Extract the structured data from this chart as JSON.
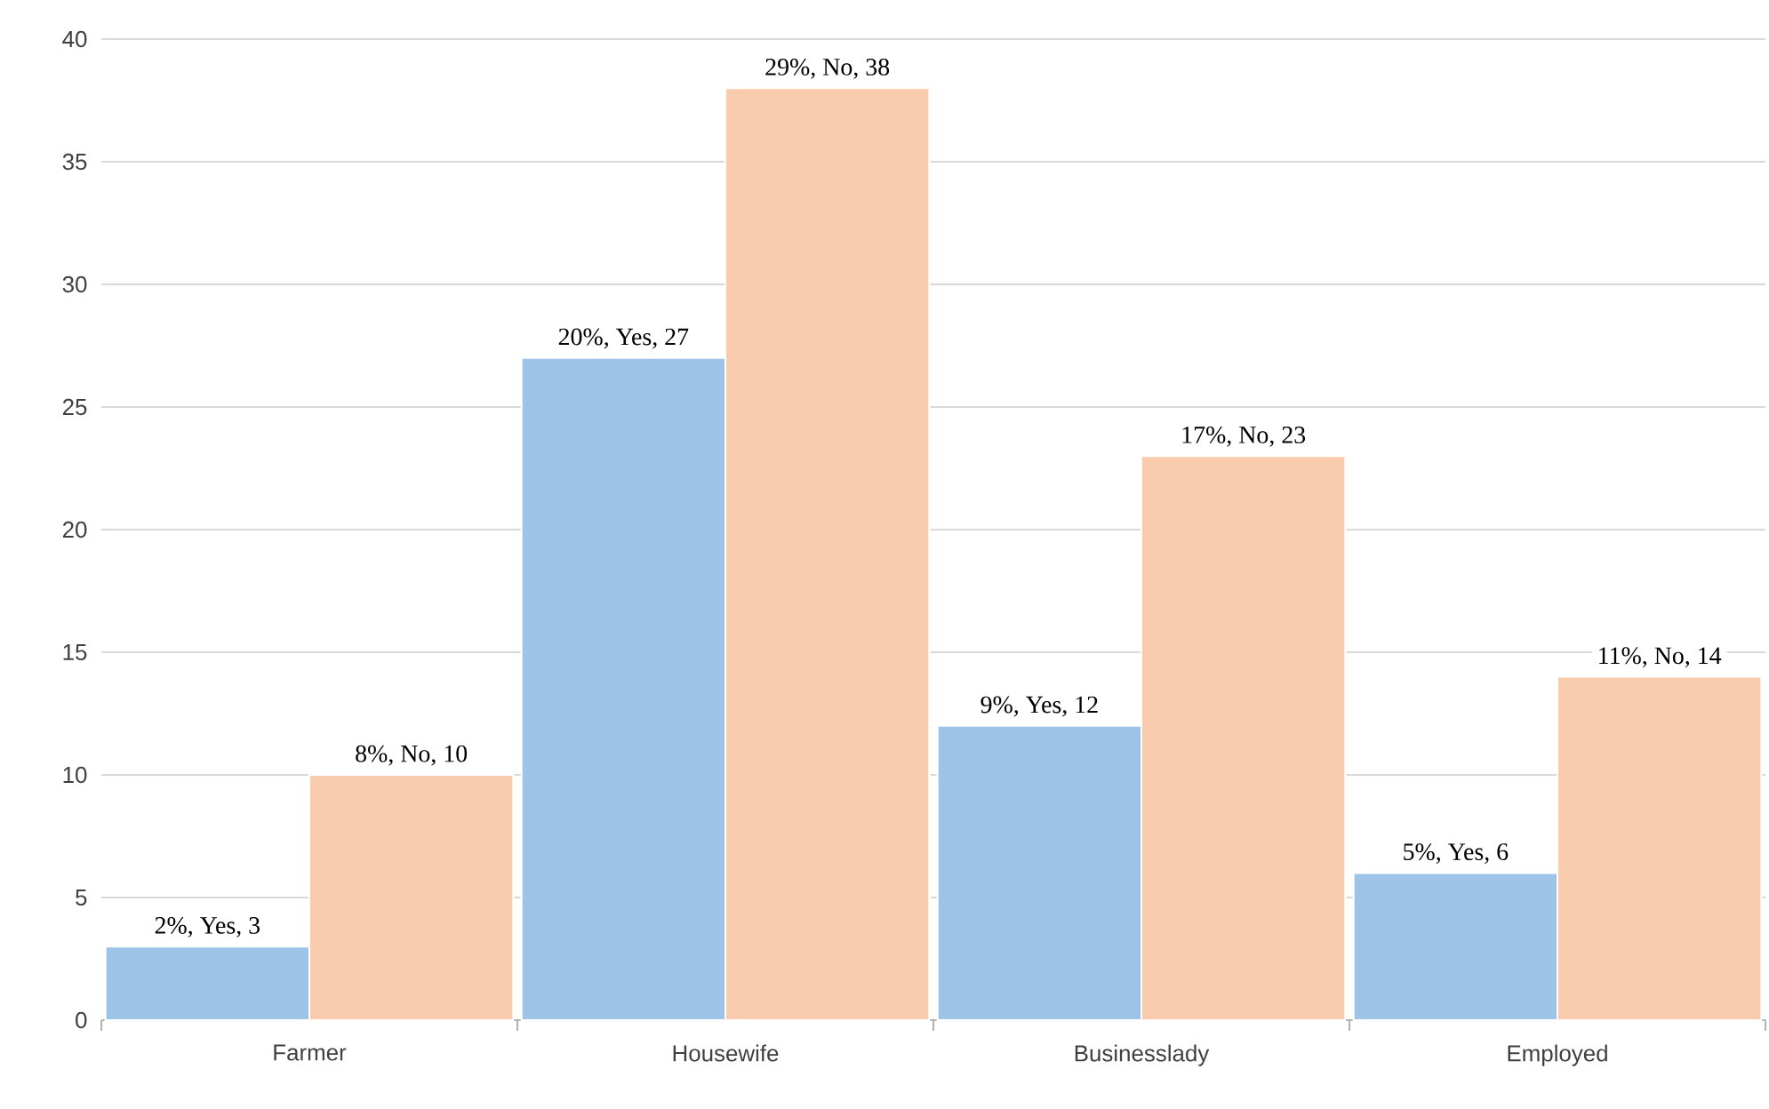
{
  "chart_data": {
    "type": "bar",
    "categories": [
      "Farmer",
      "Housewife",
      "Businesslady",
      "Employed"
    ],
    "series": [
      {
        "color": "#9dc3e6",
        "values": [
          3,
          27,
          12,
          6
        ],
        "value_labels": [
          "2%, Yes, 3",
          "20%, Yes, 27",
          "9%, Yes, 12",
          "5%, Yes, 6"
        ]
      },
      {
        "color": "#f8cbad",
        "values": [
          10,
          38,
          23,
          14
        ],
        "value_labels": [
          "8%, No, 10",
          "29%, No, 38",
          "17%, No, 23",
          "11%, No, 14"
        ]
      }
    ],
    "ylim": [
      0,
      40
    ],
    "yticks": [
      0,
      5,
      10,
      15,
      20,
      25,
      30,
      35,
      40
    ],
    "grid": "y"
  }
}
